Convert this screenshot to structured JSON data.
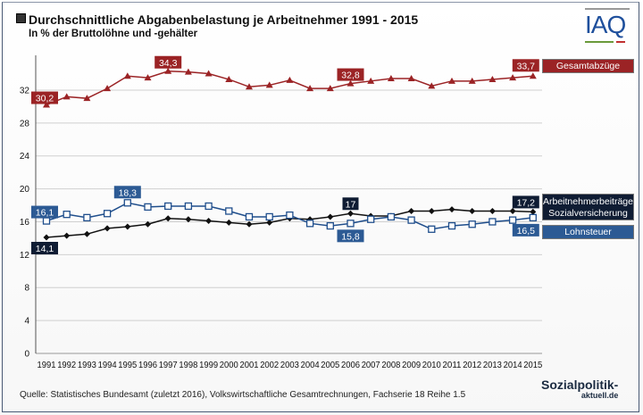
{
  "header": {
    "title": "Durchschnittliche Abgabenbelastung je Arbeitnehmer  1991 - 2015",
    "subtitle": "In % der Bruttolöhne und -gehälter",
    "logo": "IAQ"
  },
  "footer": {
    "source": "Quelle: Statistisches Bundesamt (zuletzt 2016), Volkswirtschaftliche Gesamtrechnungen, Fachserie 18 Reihe 1.5",
    "brand": "Sozialpolitik-",
    "brand_sub": "aktuell.de"
  },
  "chart_data": {
    "type": "line",
    "title": "Durchschnittliche Abgabenbelastung je Arbeitnehmer  1991 - 2015",
    "ylabel": "In % der Bruttolöhne und -gehälter",
    "ylim": [
      0,
      34
    ],
    "yticks": [
      0,
      4,
      8,
      12,
      16,
      20,
      24,
      28,
      32
    ],
    "x": [
      "1991",
      "1992",
      "1993",
      "1994",
      "1995",
      "1996",
      "1997",
      "1998",
      "1999",
      "2000",
      "2001",
      "2002",
      "2003",
      "2004",
      "2005",
      "2006",
      "2007",
      "2008",
      "2009",
      "2010",
      "2011",
      "2012",
      "2013",
      "2014",
      "2015"
    ],
    "series": [
      {
        "name": "Gesamtabzüge",
        "color": "#9b2325",
        "marker": "triangle",
        "values": [
          30.2,
          31.2,
          31.0,
          32.2,
          33.7,
          33.5,
          34.3,
          34.2,
          34.0,
          33.3,
          32.4,
          32.6,
          33.2,
          32.2,
          32.2,
          32.8,
          33.1,
          33.4,
          33.4,
          32.5,
          33.1,
          33.1,
          33.3,
          33.5,
          33.7
        ],
        "labels": [
          {
            "i": 0,
            "text": "30,2"
          },
          {
            "i": 6,
            "text": "34,3"
          },
          {
            "i": 15,
            "text": "32,8"
          },
          {
            "i": 24,
            "text": "33,7"
          }
        ]
      },
      {
        "name": "Arbeitnehmerbeiträge Sozialversicherung",
        "name_lines": [
          "Arbeitnehmerbeiträge",
          "Sozialversicherung"
        ],
        "color": "#111111",
        "marker": "diamond",
        "values": [
          14.1,
          14.3,
          14.5,
          15.2,
          15.4,
          15.7,
          16.4,
          16.3,
          16.1,
          15.9,
          15.7,
          15.9,
          16.4,
          16.3,
          16.6,
          17.0,
          16.7,
          16.7,
          17.3,
          17.3,
          17.5,
          17.3,
          17.3,
          17.3,
          17.2
        ],
        "labels": [
          {
            "i": 0,
            "text": "14,1"
          },
          {
            "i": 15,
            "text": "17"
          },
          {
            "i": 24,
            "text": "17,2"
          }
        ]
      },
      {
        "name": "Lohnsteuer",
        "color": "#1f4e8c",
        "marker": "square",
        "values": [
          16.1,
          16.9,
          16.5,
          17.0,
          18.3,
          17.8,
          17.9,
          17.9,
          17.9,
          17.3,
          16.6,
          16.6,
          16.8,
          15.8,
          15.5,
          15.8,
          16.3,
          16.6,
          16.2,
          15.1,
          15.5,
          15.7,
          16.0,
          16.2,
          16.5
        ],
        "labels": [
          {
            "i": 0,
            "text": "16,1"
          },
          {
            "i": 4,
            "text": "18,3"
          },
          {
            "i": 15,
            "text": "15,8"
          },
          {
            "i": 24,
            "text": "16,5"
          }
        ]
      }
    ],
    "legend": "right",
    "grid": true
  }
}
